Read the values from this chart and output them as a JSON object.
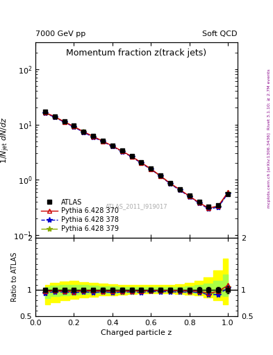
{
  "title": "Momentum fraction z(track jets)",
  "top_left_label": "7000 GeV pp",
  "top_right_label": "Soft QCD",
  "right_label_main": "Rivet 3.1.10; ≥ 2.7M events",
  "right_label_sub": "mcplots.cern.ch [arXiv:1306.3436]",
  "watermark": "ATLAS_2011_I919017",
  "xlabel": "Charged particle z",
  "ylabel_main": "1/N_jet dN/dz",
  "ylabel_ratio": "Ratio to ATLAS",
  "xlim": [
    0.0,
    1.05
  ],
  "ylim_main": [
    0.09,
    300
  ],
  "ylim_ratio": [
    0.5,
    2.0
  ],
  "x_data": [
    0.05,
    0.1,
    0.15,
    0.2,
    0.25,
    0.3,
    0.35,
    0.4,
    0.45,
    0.5,
    0.55,
    0.6,
    0.65,
    0.7,
    0.75,
    0.8,
    0.85,
    0.9,
    0.95,
    1.0
  ],
  "atlas_y": [
    17.0,
    14.0,
    11.5,
    9.5,
    7.5,
    6.2,
    5.1,
    4.2,
    3.4,
    2.7,
    2.1,
    1.6,
    1.2,
    0.88,
    0.68,
    0.52,
    0.4,
    0.33,
    0.35,
    0.55
  ],
  "atlas_yerr": [
    0.5,
    0.4,
    0.35,
    0.3,
    0.25,
    0.2,
    0.18,
    0.15,
    0.12,
    0.1,
    0.08,
    0.06,
    0.05,
    0.04,
    0.03,
    0.025,
    0.02,
    0.018,
    0.02,
    0.035
  ],
  "py370_y": [
    16.5,
    13.8,
    11.2,
    9.2,
    7.4,
    6.1,
    5.0,
    4.1,
    3.3,
    2.65,
    2.05,
    1.58,
    1.18,
    0.87,
    0.67,
    0.51,
    0.39,
    0.31,
    0.34,
    0.6
  ],
  "py378_y": [
    16.0,
    13.5,
    11.0,
    9.0,
    7.2,
    5.9,
    4.9,
    4.0,
    3.25,
    2.6,
    2.0,
    1.55,
    1.16,
    0.85,
    0.65,
    0.5,
    0.38,
    0.3,
    0.32,
    0.57
  ],
  "py379_y": [
    16.2,
    13.6,
    11.1,
    9.1,
    7.3,
    6.0,
    4.95,
    4.05,
    3.28,
    2.62,
    2.02,
    1.56,
    1.17,
    0.86,
    0.66,
    0.505,
    0.385,
    0.305,
    0.33,
    0.58
  ],
  "band_green_low": [
    0.84,
    0.88,
    0.9,
    0.91,
    0.92,
    0.93,
    0.94,
    0.94,
    0.95,
    0.95,
    0.96,
    0.96,
    0.96,
    0.96,
    0.96,
    0.95,
    0.94,
    0.93,
    0.9,
    0.88
  ],
  "band_green_high": [
    1.06,
    1.08,
    1.09,
    1.1,
    1.09,
    1.08,
    1.07,
    1.07,
    1.06,
    1.06,
    1.06,
    1.06,
    1.06,
    1.06,
    1.06,
    1.07,
    1.09,
    1.12,
    1.18,
    1.3
  ],
  "band_yellow_low": [
    0.72,
    0.76,
    0.8,
    0.83,
    0.85,
    0.87,
    0.89,
    0.9,
    0.91,
    0.92,
    0.93,
    0.93,
    0.93,
    0.93,
    0.92,
    0.91,
    0.89,
    0.86,
    0.8,
    0.72
  ],
  "band_yellow_high": [
    1.1,
    1.14,
    1.16,
    1.17,
    1.15,
    1.13,
    1.12,
    1.11,
    1.1,
    1.1,
    1.1,
    1.1,
    1.1,
    1.1,
    1.11,
    1.13,
    1.17,
    1.24,
    1.38,
    1.6
  ],
  "atlas_color": "#000000",
  "py370_color": "#cc0000",
  "py378_color": "#0000cc",
  "py379_color": "#88aa00",
  "band_green_color": "#aaff44",
  "band_yellow_color": "#ffff00",
  "legend_entries": [
    "ATLAS",
    "Pythia 6.428 370",
    "Pythia 6.428 378",
    "Pythia 6.428 379"
  ],
  "fig_width": 3.93,
  "fig_height": 5.12,
  "dpi": 100
}
